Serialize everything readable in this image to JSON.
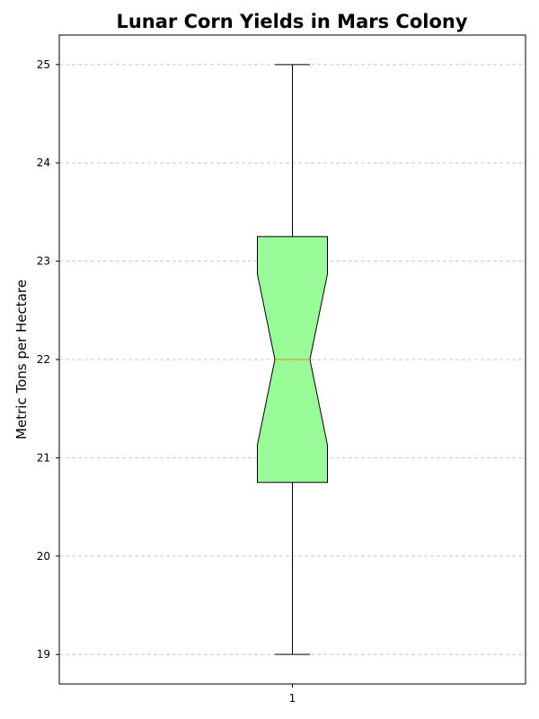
{
  "chart_data": {
    "type": "box",
    "title": "Lunar Corn Yields in Mars Colony",
    "xlabel": "",
    "ylabel": "Metric Tons per Hectare",
    "categories": [
      "1"
    ],
    "ylim": [
      18.7,
      25.3
    ],
    "yticks": [
      19,
      20,
      21,
      22,
      23,
      24,
      25
    ],
    "grid": "y-dashed",
    "notched": true,
    "boxes": [
      {
        "category": "1",
        "whisker_low": 19,
        "q1": 20.75,
        "median": 22,
        "q3": 23.25,
        "whisker_high": 25,
        "notch_low": 21.13,
        "notch_high": 22.87
      }
    ],
    "colors": {
      "box_fill": "#98fb98",
      "box_edge": "#000000",
      "median": "#ff7f0e",
      "whisker": "#000000",
      "grid": "#c8c8c8"
    }
  }
}
